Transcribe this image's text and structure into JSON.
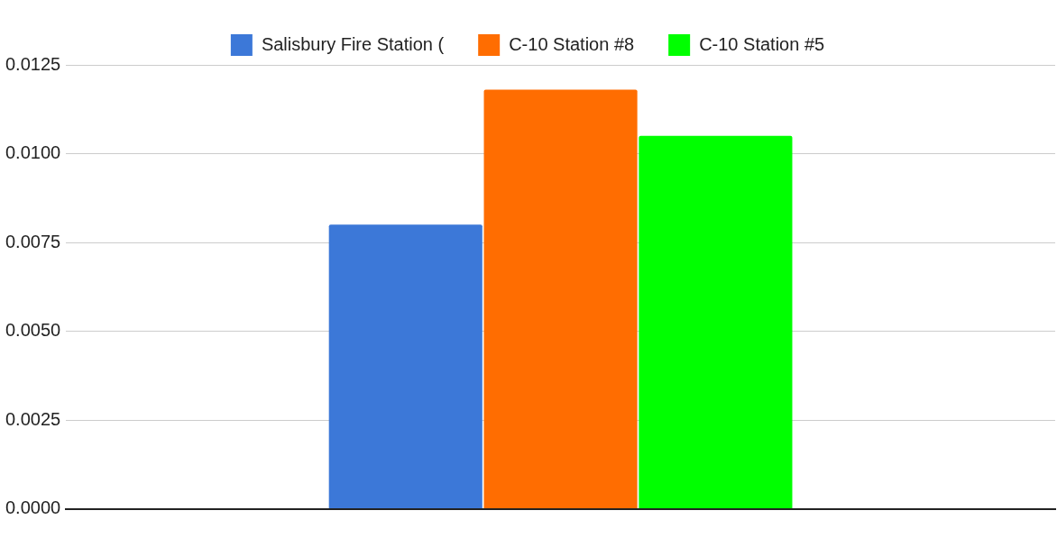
{
  "chart_data": {
    "type": "bar",
    "categories": [
      null
    ],
    "series": [
      {
        "name": "Salisbury Fire Station (",
        "color": "#3c78d8",
        "values": [
          0.008
        ]
      },
      {
        "name": "C-10 Station #8",
        "color": "#ff6d01",
        "values": [
          0.0118
        ]
      },
      {
        "name": "C-10 Station #5",
        "color": "#00ff00",
        "values": [
          0.0105
        ]
      }
    ],
    "ylim": [
      0,
      0.0125
    ],
    "yticks": [
      {
        "value": 0,
        "label": "0.0000"
      },
      0.0025,
      {
        "value": 0.005,
        "label": "0.0050"
      },
      0.0075,
      {
        "value": 0.01,
        "label": "0.0100"
      },
      0.0125
    ],
    "grid": "y",
    "legend": "top"
  }
}
